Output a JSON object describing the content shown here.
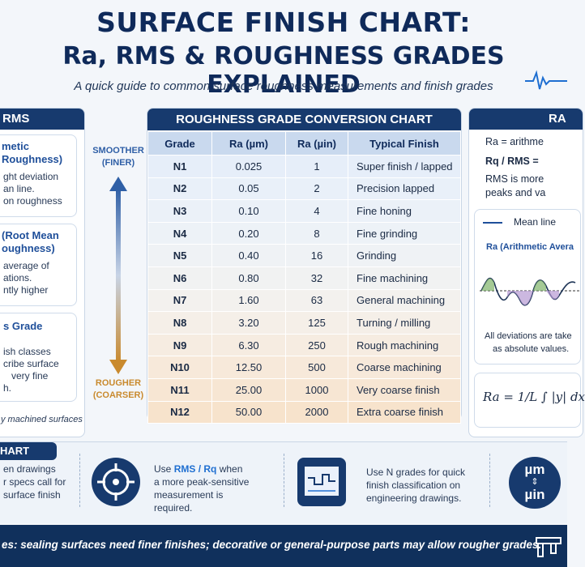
{
  "header": {
    "title_line1": "SURFACE FINISH CHART:",
    "title_line2": "Ra, RMS & ROUGHNESS GRADES EXPLAINED",
    "subtitle": "A quick guide to common surface roughness measurements and finish grades"
  },
  "left_panel": {
    "header": "RMS",
    "card1": {
      "title_a": "metic",
      "title_b": "Roughness)",
      "lines": [
        "ght deviation",
        "an line.",
        "on roughness"
      ]
    },
    "card2": {
      "title_a": "(Root Mean",
      "title_b": "oughness)",
      "lines": [
        "average of",
        "ations.",
        "ntly higher"
      ]
    },
    "card3": {
      "title": "s Grade",
      "lines": [
        "ish classes",
        "cribe surface",
        "very fine",
        "h."
      ]
    },
    "footer_note": "y machined surfaces"
  },
  "scale": {
    "top_label_1": "SMOOTHER",
    "top_label_2": "(FINER)",
    "bottom_label_1": "ROUGHER",
    "bottom_label_2": "(COARSER)"
  },
  "table": {
    "title": "ROUGHNESS GRADE CONVERSION CHART",
    "headers": [
      "Grade",
      "Ra (µm)",
      "Ra (µin)",
      "Typical Finish"
    ],
    "rows": [
      [
        "N1",
        "0.025",
        "1",
        "Super finish / lapped"
      ],
      [
        "N2",
        "0.05",
        "2",
        "Precision lapped"
      ],
      [
        "N3",
        "0.10",
        "4",
        "Fine honing"
      ],
      [
        "N4",
        "0.20",
        "8",
        "Fine grinding"
      ],
      [
        "N5",
        "0.40",
        "16",
        "Grinding"
      ],
      [
        "N6",
        "0.80",
        "32",
        "Fine machining"
      ],
      [
        "N7",
        "1.60",
        "63",
        "General machining"
      ],
      [
        "N8",
        "3.20",
        "125",
        "Turning / milling"
      ],
      [
        "N9",
        "6.30",
        "250",
        "Rough machining"
      ],
      [
        "N10",
        "12.50",
        "500",
        "Coarse machining"
      ],
      [
        "N11",
        "25.00",
        "1000",
        "Very coarse finish"
      ],
      [
        "N12",
        "50.00",
        "2000",
        "Extra coarse finish"
      ]
    ]
  },
  "right_panel": {
    "header": "RA",
    "line1": "Ra = arithme",
    "line2": "Rq / RMS =",
    "line3": "RMS is more",
    "line4": "peaks and va",
    "graph_mean": "Mean line",
    "graph_title": "Ra (Arithmetic Avera",
    "graph_note1": "All deviations are take",
    "graph_note2": "as absolute values.",
    "formula": "Ra = 1/L ∫ |y| dx"
  },
  "tips": {
    "header": "HART",
    "tip1": [
      "en drawings",
      "r specs call for",
      "surface finish"
    ],
    "tip2_prefix": "Use ",
    "tip2_highlight": "RMS / Rq",
    "tip2_suffix": " when",
    "tip2_lines": [
      "a more peak-sensitive",
      "measurement is",
      "required."
    ],
    "tip3": [
      "Use N grades for quick",
      "finish classification on",
      "engineering drawings."
    ],
    "tip4_top": "µm",
    "tip4_bottom": "µin"
  },
  "footer": {
    "text": "es: sealing surfaces need finer finishes; decorative or general-purpose parts may allow rougher grades."
  },
  "colors": {
    "navy": "#173a6e",
    "accent_blue": "#1f6fd1",
    "smooth_blue": "#2f5fa6",
    "rough_orange": "#c98a2e"
  }
}
